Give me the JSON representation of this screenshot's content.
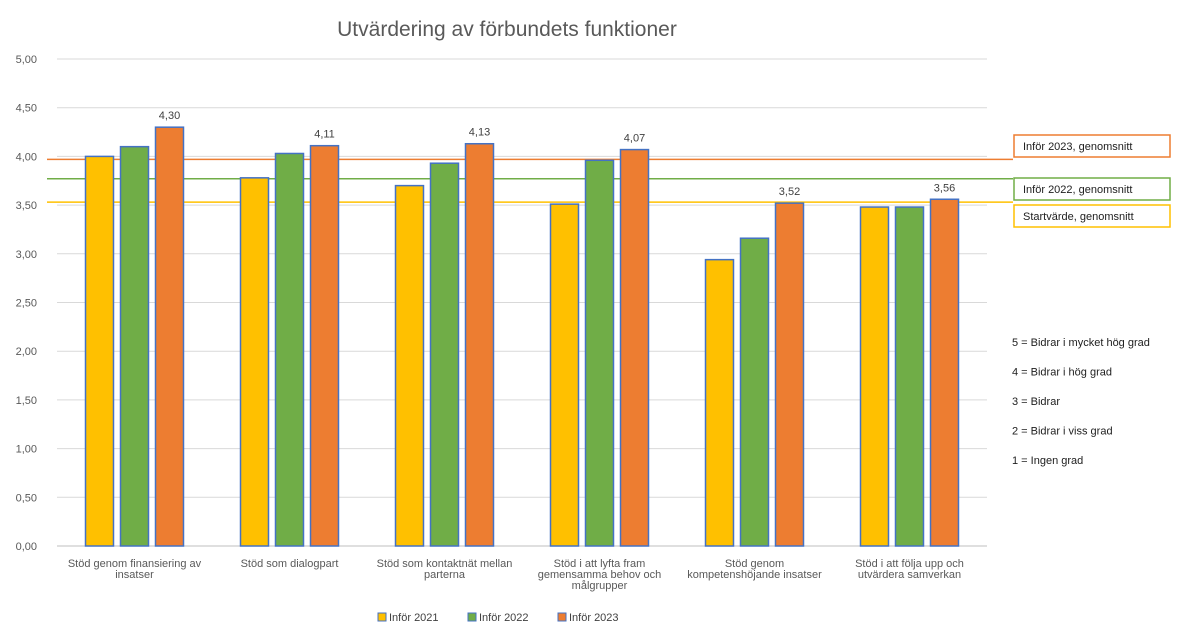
{
  "chart_data": {
    "type": "bar",
    "title": "Utvärdering av förbundets funktioner",
    "xlabel": "",
    "ylabel": "",
    "ylim": [
      0,
      5
    ],
    "yticks": [
      "0,00",
      "0,50",
      "1,00",
      "1,50",
      "2,00",
      "2,50",
      "3,00",
      "3,50",
      "4,00",
      "4,50",
      "5,00"
    ],
    "grid": true,
    "legend_position": "bottom",
    "categories": [
      [
        "Stöd genom finansiering av",
        "insatser"
      ],
      [
        "Stöd som dialogpart"
      ],
      [
        "Stöd som kontaktnät mellan",
        "parterna"
      ],
      [
        "Stöd i att lyfta fram",
        "gemensamma behov och",
        "målgrupper"
      ],
      [
        "Stöd genom",
        "kompetenshöjande insatser"
      ],
      [
        "Stöd i att följa upp och",
        "utvärdera samverkan"
      ]
    ],
    "series": [
      {
        "name": "Inför 2021",
        "color": "#FFC000",
        "values": [
          4.0,
          3.78,
          3.7,
          3.51,
          2.94,
          3.48
        ]
      },
      {
        "name": "Inför 2022",
        "color": "#70AD47",
        "values": [
          4.1,
          4.03,
          3.93,
          3.96,
          3.16,
          3.48
        ]
      },
      {
        "name": "Inför 2023",
        "color": "#ED7D31",
        "values": [
          4.3,
          4.11,
          4.13,
          4.07,
          3.52,
          3.56
        ],
        "data_labels": [
          "4,30",
          "4,11",
          "4,13",
          "4,07",
          "3,52",
          "3,56"
        ]
      }
    ],
    "bar_outline_color": "#4472C4",
    "average_lines": [
      {
        "label": "Inför 2023, genomsnitt",
        "value": 3.97,
        "color": "#ED7D31"
      },
      {
        "label": "Inför 2022, genomsnitt",
        "value": 3.77,
        "color": "#70AD47"
      },
      {
        "label": "Startvärde, genomsnitt",
        "value": 3.53,
        "color": "#FFC000"
      }
    ],
    "scale_legend": [
      "5 = Bidrar i mycket hög grad",
      "4 = Bidrar i hög grad",
      "3 = Bidrar",
      "2 = Bidrar i viss grad",
      "1 = Ingen grad"
    ]
  }
}
